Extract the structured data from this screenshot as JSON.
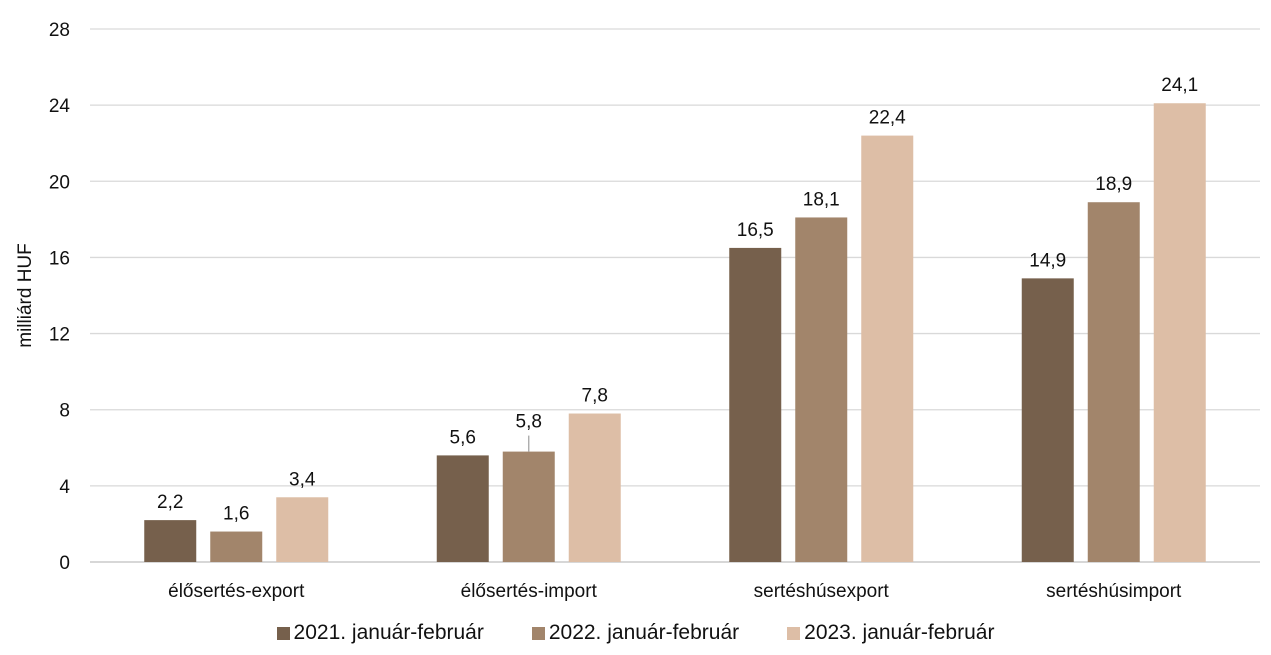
{
  "chart_data": {
    "type": "bar",
    "title": "",
    "xlabel": "",
    "ylabel": "milliárd HUF",
    "ylim": [
      0,
      28
    ],
    "yticks": [
      0,
      4,
      8,
      12,
      16,
      20,
      24,
      28
    ],
    "grid": true,
    "legend_position": "bottom",
    "categories": [
      "élősertés-export",
      "élősertés-import",
      "sertéshúsexport",
      "sertéshúsimport"
    ],
    "series": [
      {
        "name": "2021. január-február",
        "color": "#76604c",
        "values": [
          2.2,
          5.6,
          16.5,
          14.9
        ],
        "labels": [
          "2,2",
          "5,6",
          "16,5",
          "14,9"
        ]
      },
      {
        "name": "2022. január-február",
        "color": "#a2856b",
        "values": [
          1.6,
          5.8,
          18.1,
          18.9
        ],
        "labels": [
          "1,6",
          "5,8",
          "18,1",
          "18,9"
        ]
      },
      {
        "name": "2023. január-február",
        "color": "#ddbea6",
        "values": [
          3.4,
          7.8,
          22.4,
          24.1
        ],
        "labels": [
          "3,4",
          "7,8",
          "22,4",
          "24,1"
        ]
      }
    ]
  }
}
